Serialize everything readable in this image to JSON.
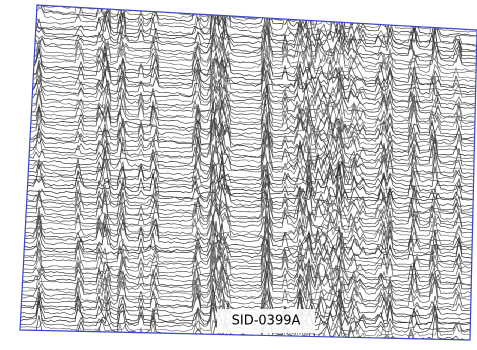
{
  "label": "SID-0399A"
}
